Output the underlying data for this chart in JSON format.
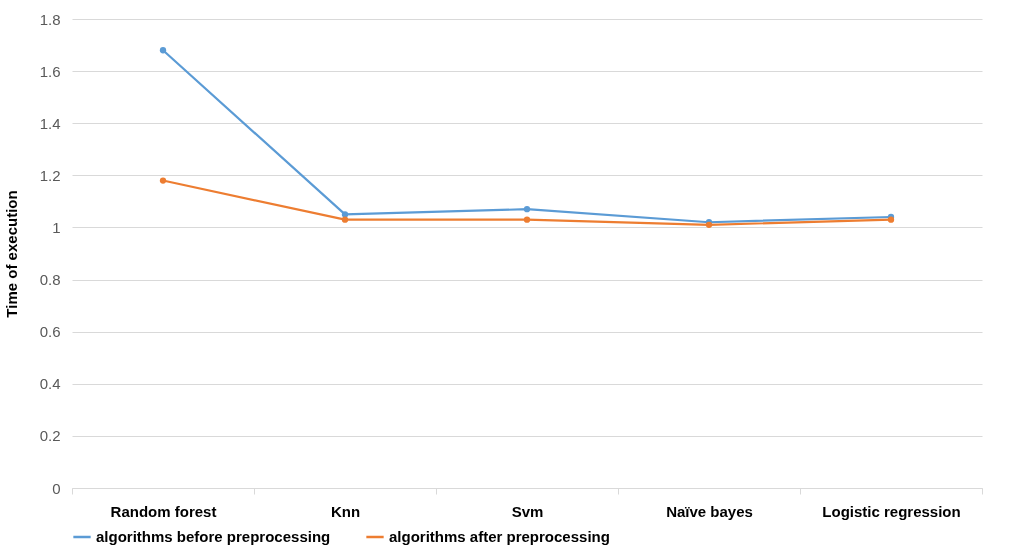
{
  "chart_data": {
    "type": "line",
    "ylabel": "Time of execution",
    "categories": [
      "Random forest",
      "Knn",
      "Svm",
      "Naïve bayes",
      "Logistic regression"
    ],
    "series": [
      {
        "name": "algorithms before preprocessing",
        "color": "#5b9bd5",
        "values": [
          1.68,
          1.05,
          1.07,
          1.02,
          1.04
        ]
      },
      {
        "name": "algorithms after preprocessing",
        "color": "#ed7d31",
        "values": [
          1.18,
          1.03,
          1.03,
          1.01,
          1.03
        ]
      }
    ],
    "ylim": [
      0,
      1.8
    ],
    "yticks": [
      0,
      0.2,
      0.4,
      0.6,
      0.8,
      1,
      1.2,
      1.4,
      1.6,
      1.8
    ],
    "grid": "y",
    "legend": "bottom",
    "marker": "circle",
    "line_style": "solid"
  }
}
